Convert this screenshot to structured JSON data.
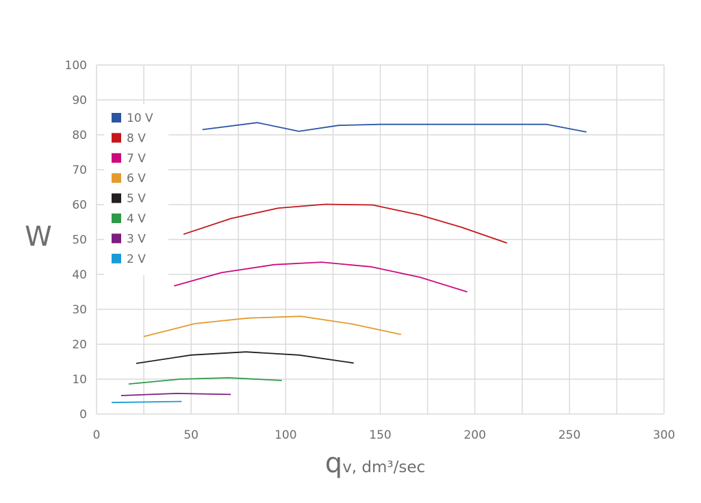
{
  "chart_data": {
    "type": "line",
    "title": "",
    "ylabel": "W",
    "xlabel": {
      "symbol": "q",
      "rest": "v, dm³/sec"
    },
    "xlim": [
      0,
      300
    ],
    "ylim": [
      0,
      100
    ],
    "xticks": [
      "0",
      "50",
      "100",
      "150",
      "200",
      "250",
      "300"
    ],
    "yticks": [
      "0",
      "10",
      "20",
      "30",
      "40",
      "50",
      "60",
      "70",
      "80",
      "90",
      "100"
    ],
    "grid": true,
    "legend_position": "top-left",
    "series": [
      {
        "name": "10 V",
        "color": "#2b55a3",
        "x": [
          56,
          85,
          107,
          128,
          150,
          175,
          200,
          238,
          259
        ],
        "y": [
          81.5,
          83.5,
          81,
          82.7,
          83,
          83,
          83,
          83,
          80.8
        ]
      },
      {
        "name": "8 V",
        "color": "#c4161c",
        "x": [
          46,
          71,
          96,
          121,
          146,
          171,
          193,
          217
        ],
        "y": [
          51.5,
          56,
          59,
          60.1,
          59.9,
          57,
          53.5,
          49
        ]
      },
      {
        "name": "7 V",
        "color": "#cc0a7e",
        "x": [
          41,
          66,
          94,
          119,
          145,
          171,
          196
        ],
        "y": [
          36.7,
          40.5,
          42.8,
          43.5,
          42.2,
          39.2,
          35
        ]
      },
      {
        "name": "6 V",
        "color": "#e39b2d",
        "x": [
          25,
          52,
          80,
          108,
          135,
          161
        ],
        "y": [
          22.2,
          25.9,
          27.5,
          28,
          25.8,
          22.8
        ]
      },
      {
        "name": "5 V",
        "color": "#231f20",
        "x": [
          21,
          50,
          79,
          107,
          136
        ],
        "y": [
          14.5,
          16.9,
          17.8,
          16.9,
          14.6
        ]
      },
      {
        "name": "4 V",
        "color": "#2e9a47",
        "x": [
          17,
          44,
          70,
          98
        ],
        "y": [
          8.6,
          10,
          10.4,
          9.6
        ]
      },
      {
        "name": "3 V",
        "color": "#7c1e7e",
        "x": [
          13,
          42,
          71
        ],
        "y": [
          5.3,
          5.9,
          5.6
        ]
      },
      {
        "name": "2 V",
        "color": "#1a9ad7",
        "x": [
          8,
          45
        ],
        "y": [
          3.3,
          3.6
        ]
      }
    ]
  }
}
